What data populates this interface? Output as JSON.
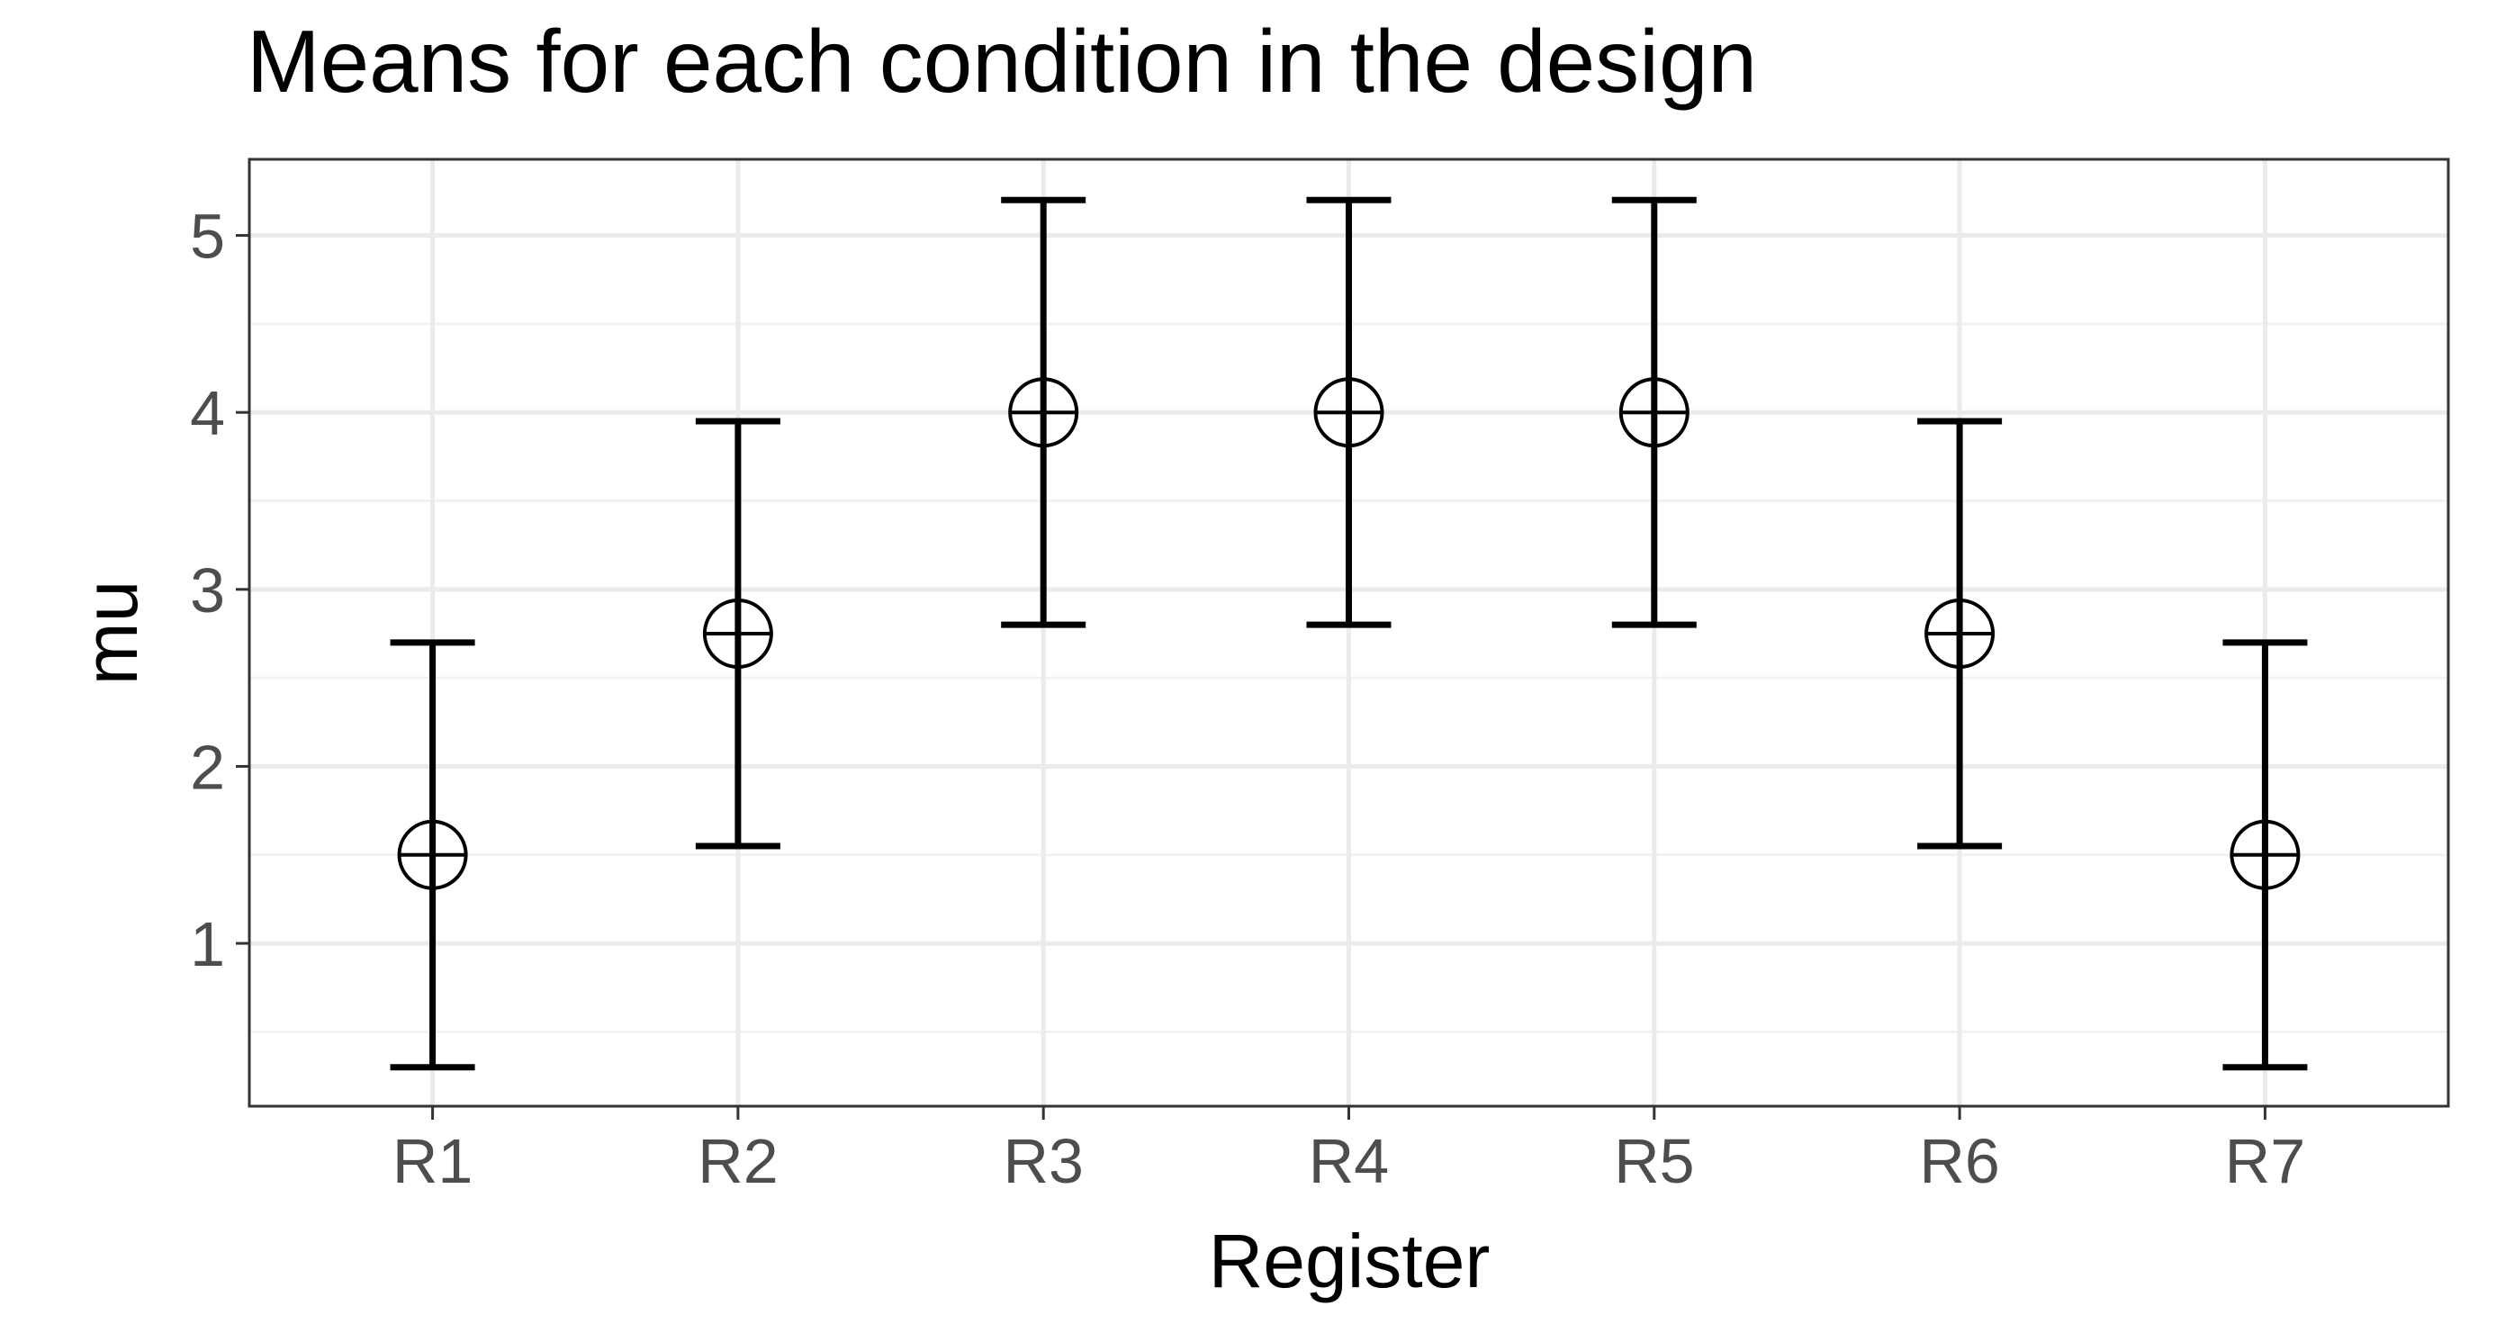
{
  "chart_data": {
    "type": "scatter",
    "title": "Means for each condition in the design",
    "xlabel": "Register",
    "ylabel": "mu",
    "categories": [
      "R1",
      "R2",
      "R3",
      "R4",
      "R5",
      "R6",
      "R7"
    ],
    "values": [
      1.5,
      2.75,
      4.0,
      4.0,
      4.0,
      2.75,
      1.5
    ],
    "lower": [
      0.3,
      1.55,
      2.8,
      2.8,
      2.8,
      1.55,
      0.3
    ],
    "upper": [
      2.7,
      3.95,
      5.2,
      5.2,
      5.2,
      3.95,
      2.7
    ],
    "ylim": [
      0.08,
      5.43
    ],
    "yticks": [
      "1",
      "2",
      "3",
      "4",
      "5"
    ],
    "grid": true,
    "marker": "circle-plus",
    "error_bars": true,
    "colors": {
      "panel_background": "#ffffff",
      "grid_major": "#ebebeb",
      "grid_minor": "#f2f2f2",
      "panel_border": "#333333",
      "mark": "#000000",
      "tick_text": "#4d4d4d"
    }
  }
}
